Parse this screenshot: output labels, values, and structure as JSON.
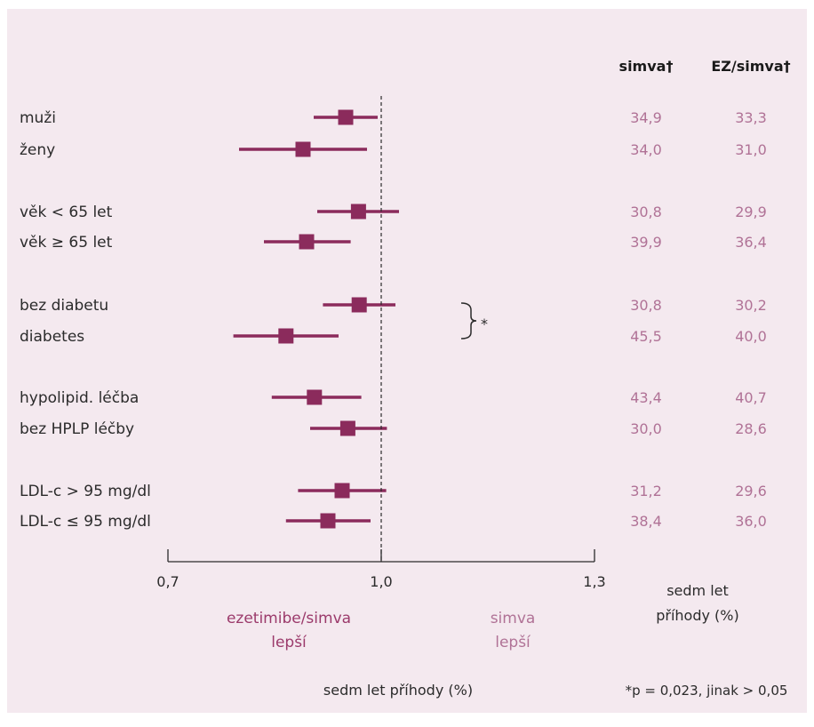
{
  "colors": {
    "background": "#f4e9ef",
    "marker": "#8b2b5c",
    "value_text": "#b07296",
    "label_text": "#2b2b2b",
    "left_note": "#9b3a6b",
    "right_note": "#b07296"
  },
  "chart_data": {
    "type": "forest",
    "x_axis": {
      "min": 0.7,
      "max": 1.3,
      "ticks": [
        0.7,
        1.0,
        1.3
      ],
      "tick_labels": [
        "0,7",
        "1,0",
        "1,3"
      ]
    },
    "reference_line": 1.0,
    "columns": [
      "simva†",
      "EZ/simva†"
    ],
    "rows": [
      {
        "label": "muži",
        "estimate": 0.95,
        "lo": 0.905,
        "hi": 0.995,
        "simva": "34,9",
        "ez_simva": "33,3"
      },
      {
        "label": "ženy",
        "estimate": 0.89,
        "lo": 0.8,
        "hi": 0.98,
        "simva": "34,0",
        "ez_simva": "31,0"
      },
      {
        "label": "věk < 65 let",
        "estimate": 0.968,
        "lo": 0.91,
        "hi": 1.025,
        "simva": "30,8",
        "ez_simva": "29,9"
      },
      {
        "label": "věk ≥ 65 let",
        "estimate": 0.895,
        "lo": 0.835,
        "hi": 0.957,
        "simva": "39,9",
        "ez_simva": "36,4"
      },
      {
        "label": "bez diabetu",
        "estimate": 0.969,
        "lo": 0.918,
        "hi": 1.02,
        "simva": "30,8",
        "ez_simva": "30,2"
      },
      {
        "label": "diabetes",
        "estimate": 0.866,
        "lo": 0.792,
        "hi": 0.94,
        "simva": "45,5",
        "ez_simva": "40,0"
      },
      {
        "label": "hypolipid. léčba",
        "estimate": 0.906,
        "lo": 0.846,
        "hi": 0.972,
        "simva": "43,4",
        "ez_simva": "40,7"
      },
      {
        "label": "bez HPLP léčby",
        "estimate": 0.953,
        "lo": 0.9,
        "hi": 1.008,
        "simva": "30,0",
        "ez_simva": "28,6"
      },
      {
        "label": "LDL-c > 95 mg/dl",
        "estimate": 0.945,
        "lo": 0.883,
        "hi": 1.007,
        "simva": "31,2",
        "ez_simva": "29,6"
      },
      {
        "label": "LDL-c ≤ 95 mg/dl",
        "estimate": 0.925,
        "lo": 0.866,
        "hi": 0.985,
        "simva": "38,4",
        "ez_simva": "36,0"
      }
    ],
    "bracket_marker": "*",
    "left_note": [
      "ezetimibe/simva",
      "lepší"
    ],
    "right_note": [
      "simva",
      "lepší"
    ],
    "column_footer": [
      "sedm let",
      "příhody (%)"
    ],
    "xlabel": "sedm let příhody (%)",
    "footnote": "*p = 0,023, jinak > 0,05"
  }
}
